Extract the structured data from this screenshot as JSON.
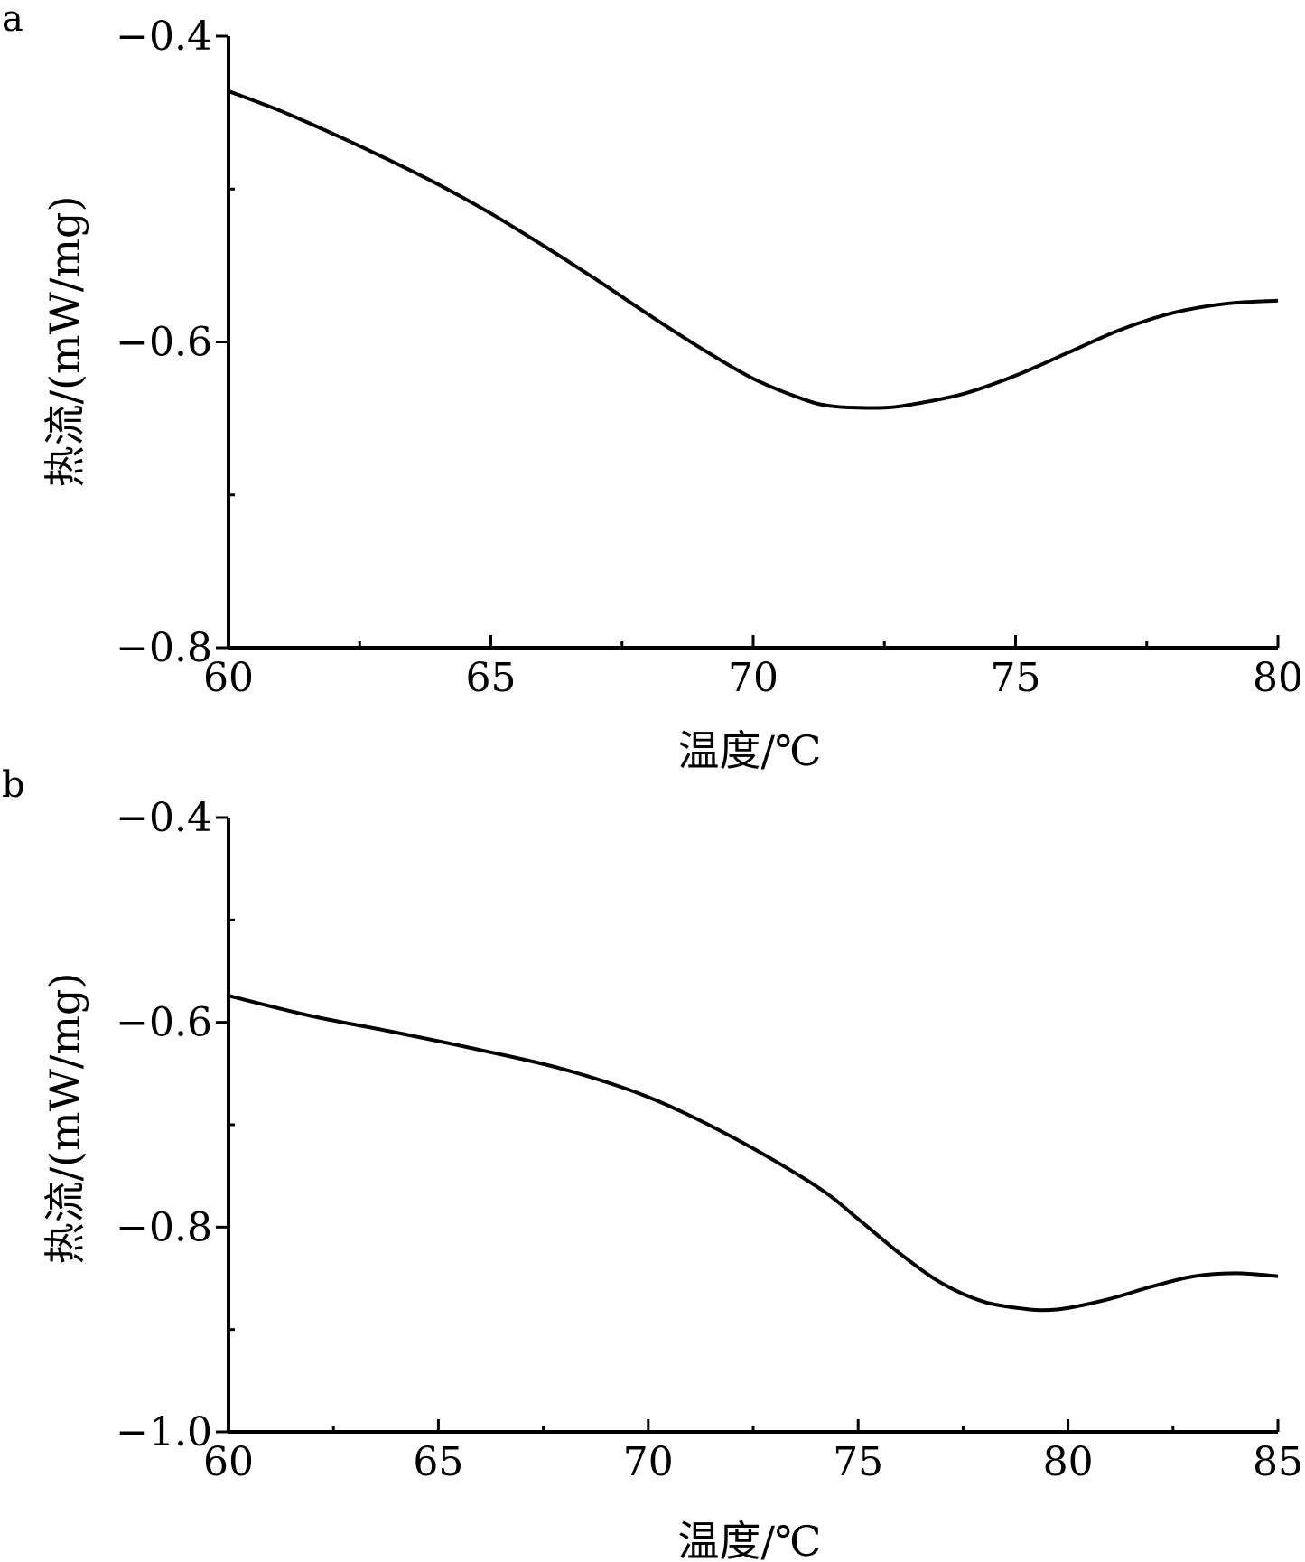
{
  "chart_data": [
    {
      "type": "line",
      "panel_label": "a",
      "xlabel": "温度/℃",
      "ylabel": "热流/(mW/mg)",
      "xlim": [
        60,
        80
      ],
      "ylim": [
        -0.8,
        -0.4
      ],
      "x_ticks": [
        60,
        65,
        70,
        75,
        80
      ],
      "x_tick_labels": [
        "60",
        "65",
        "70",
        "75",
        "80"
      ],
      "x_minor_step": 2.5,
      "y_ticks": [
        -0.4,
        -0.6,
        -0.8
      ],
      "y_tick_labels": [
        "−0.4",
        "−0.6",
        "−0.8"
      ],
      "y_minor_step": 0.1,
      "grid": false,
      "series": [
        {
          "color": "#000000",
          "x": [
            60,
            61,
            62,
            63,
            64,
            65,
            66,
            67,
            68,
            69,
            70,
            71,
            71.5,
            72,
            72.5,
            73,
            74,
            75,
            76,
            77,
            78,
            79,
            80
          ],
          "y": [
            -0.436,
            -0.449,
            -0.464,
            -0.48,
            -0.497,
            -0.516,
            -0.537,
            -0.559,
            -0.582,
            -0.604,
            -0.624,
            -0.638,
            -0.642,
            -0.643,
            -0.643,
            -0.641,
            -0.634,
            -0.622,
            -0.607,
            -0.592,
            -0.581,
            -0.575,
            -0.573
          ]
        }
      ]
    },
    {
      "type": "line",
      "panel_label": "b",
      "xlabel": "温度/℃",
      "ylabel": "热流/(mW/mg)",
      "xlim": [
        60,
        85
      ],
      "ylim": [
        -1.0,
        -0.4
      ],
      "x_ticks": [
        60,
        65,
        70,
        75,
        80,
        85
      ],
      "x_tick_labels": [
        "60",
        "65",
        "70",
        "75",
        "80",
        "85"
      ],
      "x_minor_step": 2.5,
      "y_ticks": [
        -0.4,
        -0.6,
        -0.8,
        -1.0
      ],
      "y_tick_labels": [
        "−0.4",
        "−0.6",
        "−0.8",
        "−1.0"
      ],
      "y_minor_step": 0.1,
      "grid": false,
      "series": [
        {
          "color": "#000000",
          "x": [
            60,
            62,
            64,
            66,
            68,
            70,
            72,
            74,
            75,
            76,
            77,
            78,
            79,
            79.5,
            80,
            81,
            82,
            83,
            84,
            85
          ],
          "y": [
            -0.574,
            -0.594,
            -0.61,
            -0.627,
            -0.646,
            -0.673,
            -0.712,
            -0.76,
            -0.792,
            -0.826,
            -0.855,
            -0.873,
            -0.88,
            -0.881,
            -0.879,
            -0.87,
            -0.858,
            -0.848,
            -0.845,
            -0.848
          ]
        }
      ]
    }
  ]
}
